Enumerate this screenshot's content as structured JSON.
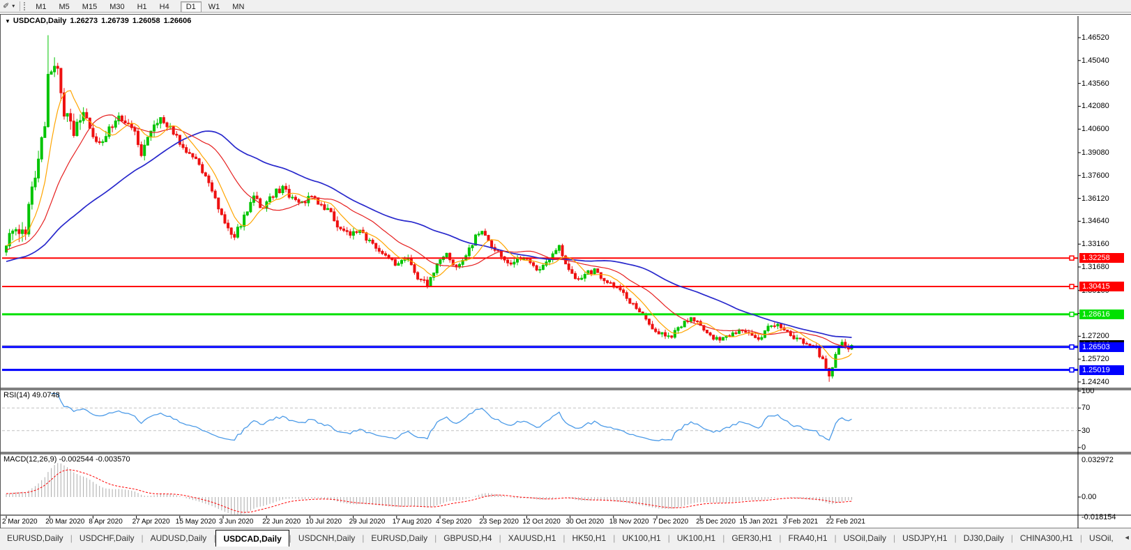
{
  "toolbar": {
    "timeframes": [
      "M1",
      "M5",
      "M15",
      "M30",
      "H1",
      "H4",
      "D1",
      "W1",
      "MN"
    ],
    "active_timeframe": "D1"
  },
  "icons": {
    "cursor_tool": "✐",
    "dropdown": "▾",
    "title_marker": "▼",
    "scroll_left": "◄",
    "scroll_right": "►"
  },
  "header": {
    "symbol": "USDCAD,Daily",
    "open": "1.26273",
    "high": "1.26739",
    "low": "1.26058",
    "close": "1.26606"
  },
  "price_axis_labels": [
    "1.46520",
    "1.45040",
    "1.43560",
    "1.42080",
    "1.40600",
    "1.39080",
    "1.37600",
    "1.36120",
    "1.34640",
    "1.33160",
    "1.31680",
    "1.30160",
    "1.28680",
    "1.27200",
    "1.25720",
    "1.24240"
  ],
  "rsi": {
    "name_label": "RSI(14) 49.0748",
    "axis_labels": [
      "100",
      "70",
      "30",
      "0"
    ],
    "level_lines": [
      70,
      30
    ],
    "value": 49.0748
  },
  "macd": {
    "name_label": "MACD(12,26,9) -0.002544 -0.003570",
    "axis_labels": [
      "0.032972",
      "0.00",
      "-0.018154"
    ],
    "main_value": -0.002544,
    "signal_value": -0.00357
  },
  "tabs": {
    "items": [
      "EURUSD,Daily",
      "USDCHF,Daily",
      "AUDUSD,Daily",
      "USDCAD,Daily",
      "USDCNH,Daily",
      "EURUSD,Daily",
      "GBPUSD,H4",
      "XAUUSD,H1",
      "HK50,H1",
      "UK100,H1",
      "UK100,H1",
      "GER30,H1",
      "FRA40,H1",
      "USOil,Daily",
      "USDJPY,H1",
      "DJ30,Daily",
      "CHINA300,H1",
      "USOil,"
    ],
    "active_index": 3
  },
  "colors": {
    "up_candle": "#00C400",
    "down_candle": "#EE1111",
    "ma_fast": "#FFA500",
    "ma_mid": "#E62020",
    "ma_slow": "#2828CC",
    "hline_red": "#FF0000",
    "hline_green": "#00E000",
    "hline_blue": "#0000FF",
    "bid_line": "#C0C0C0",
    "bid_tag_bg": "#000000",
    "rsi_line": "#4C9BE8",
    "rsi_level": "#C0C0C0",
    "macd_hist": "#ABABAB",
    "macd_signal": "#FF0000"
  },
  "chart_data": {
    "type": "candlestick",
    "symbol": "USDCAD",
    "timeframe": "Daily",
    "title": "USDCAD,Daily",
    "ohlc_current": {
      "open": 1.26273,
      "high": 1.26739,
      "low": 1.26058,
      "close": 1.26606
    },
    "x_axis_dates": [
      "2 Mar 2020",
      "20 Mar 2020",
      "8 Apr 2020",
      "27 Apr 2020",
      "15 May 2020",
      "3 Jun 2020",
      "22 Jun 2020",
      "10 Jul 2020",
      "29 Jul 2020",
      "17 Aug 2020",
      "4 Sep 2020",
      "23 Sep 2020",
      "12 Oct 2020",
      "30 Oct 2020",
      "18 Nov 2020",
      "7 Dec 2020",
      "25 Dec 2020",
      "15 Jan 2021",
      "3 Feb 2021",
      "22 Feb 2021"
    ],
    "y_axis_label_range": [
      1.2424,
      1.4652
    ],
    "num_candles": 264,
    "close_anchors": [
      [
        0,
        1.333
      ],
      [
        3,
        1.34
      ],
      [
        6,
        1.342
      ],
      [
        9,
        1.378
      ],
      [
        12,
        1.41
      ],
      [
        13,
        1.445
      ],
      [
        14,
        1.44
      ],
      [
        16,
        1.448
      ],
      [
        18,
        1.418
      ],
      [
        21,
        1.405
      ],
      [
        24,
        1.419
      ],
      [
        27,
        1.401
      ],
      [
        30,
        1.399
      ],
      [
        33,
        1.408
      ],
      [
        36,
        1.414
      ],
      [
        39,
        1.409
      ],
      [
        42,
        1.39
      ],
      [
        45,
        1.406
      ],
      [
        48,
        1.412
      ],
      [
        51,
        1.408
      ],
      [
        54,
        1.398
      ],
      [
        57,
        1.39
      ],
      [
        60,
        1.383
      ],
      [
        63,
        1.37
      ],
      [
        66,
        1.356
      ],
      [
        69,
        1.342
      ],
      [
        71,
        1.337
      ],
      [
        74,
        1.349
      ],
      [
        77,
        1.362
      ],
      [
        80,
        1.354
      ],
      [
        83,
        1.364
      ],
      [
        86,
        1.368
      ],
      [
        89,
        1.36
      ],
      [
        92,
        1.358
      ],
      [
        95,
        1.362
      ],
      [
        98,
        1.357
      ],
      [
        101,
        1.351
      ],
      [
        104,
        1.341
      ],
      [
        107,
        1.338
      ],
      [
        110,
        1.34
      ],
      [
        113,
        1.333
      ],
      [
        116,
        1.327
      ],
      [
        119,
        1.322
      ],
      [
        122,
        1.318
      ],
      [
        125,
        1.323
      ],
      [
        128,
        1.31
      ],
      [
        131,
        1.306
      ],
      [
        134,
        1.318
      ],
      [
        137,
        1.325
      ],
      [
        140,
        1.317
      ],
      [
        143,
        1.324
      ],
      [
        146,
        1.336
      ],
      [
        148,
        1.34
      ],
      [
        151,
        1.33
      ],
      [
        154,
        1.324
      ],
      [
        157,
        1.318
      ],
      [
        160,
        1.323
      ],
      [
        163,
        1.32
      ],
      [
        166,
        1.314
      ],
      [
        169,
        1.322
      ],
      [
        172,
        1.33
      ],
      [
        174,
        1.318
      ],
      [
        177,
        1.308
      ],
      [
        180,
        1.312
      ],
      [
        183,
        1.315
      ],
      [
        186,
        1.308
      ],
      [
        189,
        1.305
      ],
      [
        192,
        1.3
      ],
      [
        195,
        1.292
      ],
      [
        198,
        1.285
      ],
      [
        201,
        1.277
      ],
      [
        204,
        1.273
      ],
      [
        207,
        1.272
      ],
      [
        210,
        1.279
      ],
      [
        213,
        1.285
      ],
      [
        216,
        1.278
      ],
      [
        219,
        1.272
      ],
      [
        222,
        1.269
      ],
      [
        225,
        1.272
      ],
      [
        228,
        1.275
      ],
      [
        231,
        1.273
      ],
      [
        234,
        1.27
      ],
      [
        237,
        1.278
      ],
      [
        240,
        1.279
      ],
      [
        243,
        1.275
      ],
      [
        246,
        1.27
      ],
      [
        249,
        1.268
      ],
      [
        252,
        1.264
      ],
      [
        254,
        1.256
      ],
      [
        256,
        1.246
      ],
      [
        258,
        1.26
      ],
      [
        260,
        1.269
      ],
      [
        262,
        1.263
      ],
      [
        263,
        1.26606
      ]
    ],
    "spikes": [
      {
        "i": 13,
        "high": 1.4668
      },
      {
        "i": 256,
        "low": 1.2425
      }
    ],
    "moving_averages": [
      {
        "name": "fast",
        "period": 8
      },
      {
        "name": "medium",
        "period": 21
      },
      {
        "name": "slow",
        "period": 55
      }
    ],
    "horizontal_lines": [
      {
        "price": 1.32258,
        "label": "1.32258",
        "color_key": "hline_red",
        "width": 2
      },
      {
        "price": 1.30415,
        "label": "1.30415",
        "color_key": "hline_red",
        "width": 2
      },
      {
        "price": 1.28616,
        "label": "1.28616",
        "color_key": "hline_green",
        "width": 3
      },
      {
        "price": 1.26503,
        "label": "1.26503",
        "color_key": "hline_blue",
        "width": 3
      },
      {
        "price": 1.25019,
        "label": "1.25019",
        "color_key": "hline_blue",
        "width": 3
      }
    ],
    "bid": {
      "price": 1.26606,
      "label": "1.26606"
    },
    "indicators": {
      "rsi": {
        "period": 14,
        "value": 49.0748,
        "levels": [
          70,
          30
        ],
        "range": [
          0,
          100
        ]
      },
      "macd": {
        "fast": 12,
        "slow": 26,
        "signal": 9,
        "main": -0.002544,
        "signal_value": -0.00357,
        "axis_top": 0.032972,
        "axis_bottom": -0.018154
      }
    }
  }
}
